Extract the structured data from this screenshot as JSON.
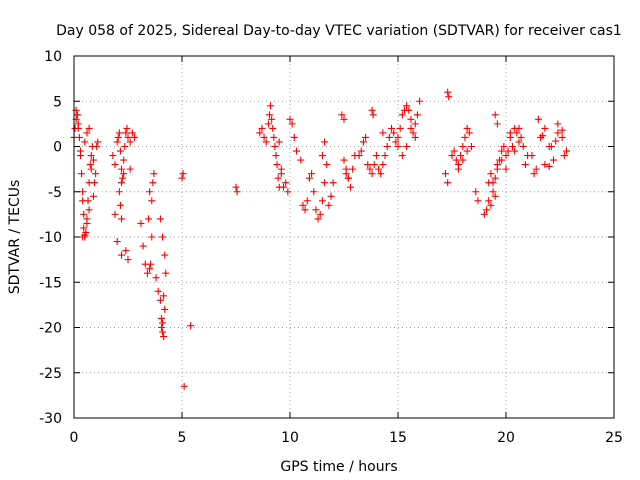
{
  "chart_data": {
    "type": "scatter",
    "title": "Day 058 of 2025, Sidereal Day-to-day VTEC variation (SDTVAR) for receiver cas1",
    "xlabel": "GPS time / hours",
    "ylabel": "SDTVAR / TECUs",
    "xlim": [
      0,
      25
    ],
    "ylim": [
      -30,
      10
    ],
    "xticks": [
      0,
      5,
      10,
      15,
      20,
      25
    ],
    "yticks": [
      10,
      5,
      0,
      -5,
      -10,
      -15,
      -20,
      -25,
      -30
    ],
    "grid": true,
    "marker": "+",
    "color": "#ff0000",
    "series": [
      {
        "name": "SDTVAR",
        "x": [
          0.0,
          0.05,
          0.1,
          0.15,
          0.2,
          0.25,
          0.3,
          0.35,
          0.4,
          0.45,
          0.5,
          0.55,
          0.6,
          0.65,
          0.7,
          0.75,
          0.8,
          0.85,
          0.9,
          0.95,
          1.0,
          1.05,
          1.1,
          0.1,
          0.15,
          0.2,
          0.3,
          0.4,
          0.45,
          0.5,
          0.6,
          0.7,
          0.8,
          0.9,
          0.4,
          0.5,
          0.6,
          0.7,
          1.8,
          1.9,
          2.0,
          2.05,
          2.1,
          2.15,
          2.2,
          2.25,
          2.3,
          2.35,
          2.4,
          2.45,
          2.5,
          2.6,
          2.7,
          2.8,
          1.9,
          2.0,
          2.2,
          2.4,
          2.5,
          2.2,
          2.3,
          2.1,
          2.15,
          2.2,
          2.6,
          3.1,
          3.2,
          3.3,
          3.4,
          3.45,
          3.5,
          3.55,
          3.6,
          3.65,
          3.7,
          3.5,
          3.6,
          3.8,
          3.9,
          4.0,
          4.05,
          4.1,
          4.15,
          4.2,
          4.25,
          4.0,
          4.1,
          4.2,
          4.15,
          4.1,
          4.05,
          5.0,
          5.1,
          5.4,
          5.05,
          7.5,
          7.55,
          8.6,
          8.7,
          8.8,
          8.9,
          9.0,
          9.05,
          9.1,
          9.15,
          9.2,
          9.25,
          9.3,
          9.35,
          9.4,
          9.45,
          9.5,
          9.6,
          9.7,
          9.8,
          9.9,
          10.0,
          10.1,
          10.2,
          10.3,
          9.5,
          9.6,
          10.5,
          10.6,
          10.7,
          10.8,
          10.9,
          11.0,
          11.1,
          11.2,
          11.3,
          11.4,
          11.5,
          11.6,
          11.7,
          11.8,
          11.9,
          12.0,
          11.5,
          11.6,
          12.4,
          12.5,
          12.6,
          12.7,
          12.8,
          12.9,
          13.0,
          12.5,
          12.6,
          12.7,
          13.2,
          13.3,
          13.4,
          13.5,
          13.6,
          13.7,
          13.8,
          13.9,
          14.0,
          14.1,
          14.2,
          14.3,
          14.4,
          14.5,
          14.6,
          14.7,
          14.8,
          14.9,
          15.0,
          13.8,
          13.85,
          14.3,
          15.0,
          15.1,
          15.2,
          15.3,
          15.4,
          15.5,
          15.6,
          15.7,
          15.8,
          15.9,
          16.0,
          15.2,
          15.4,
          15.6,
          15.8,
          17.3,
          17.35,
          17.2,
          17.3,
          17.5,
          17.6,
          17.7,
          17.8,
          17.9,
          18.0,
          18.1,
          18.2,
          18.3,
          18.4,
          17.8,
          18.0,
          18.2,
          18.6,
          18.7,
          19.0,
          19.1,
          19.2,
          19.3,
          19.4,
          19.5,
          19.6,
          19.7,
          19.8,
          19.9,
          20.0,
          20.1,
          20.2,
          20.3,
          20.4,
          20.5,
          20.6,
          20.7,
          20.8,
          20.9,
          21.0,
          19.2,
          19.4,
          19.6,
          19.8,
          20.0,
          20.2,
          20.4,
          20.6,
          19.3,
          19.5,
          19.5,
          19.6,
          21.2,
          21.4,
          21.6,
          21.8,
          22.0,
          22.2,
          22.4,
          22.6,
          22.8,
          21.5,
          21.8,
          22.1,
          22.4,
          22.7,
          21.3,
          21.7,
          22.0,
          22.3,
          22.6
        ],
        "y": [
          1.0,
          2.0,
          3.0,
          3.5,
          2.5,
          1.0,
          -1.0,
          -3.0,
          -6.0,
          -9.0,
          -10.0,
          -9.5,
          -8.0,
          -6.0,
          -4.0,
          -2.0,
          -1.0,
          0.0,
          -1.5,
          -4.0,
          -3.0,
          0.0,
          0.5,
          4.0,
          3.5,
          2.0,
          -0.5,
          -5.0,
          -7.5,
          0.5,
          1.5,
          2.0,
          -2.5,
          -5.5,
          -10.0,
          -9.8,
          -8.5,
          -7.0,
          -1.0,
          -2.0,
          0.5,
          1.0,
          1.5,
          -0.5,
          -2.5,
          -3.5,
          -1.5,
          0.0,
          1.5,
          2.0,
          1.0,
          0.5,
          1.5,
          1.0,
          -7.5,
          -10.5,
          -12.0,
          -11.5,
          -12.5,
          -8.0,
          -3.0,
          -5.0,
          -6.5,
          -4.0,
          -2.5,
          -8.5,
          -11.0,
          -13.0,
          -14.0,
          -8.0,
          -13.5,
          -13.0,
          -6.0,
          -4.0,
          -3.0,
          -5.0,
          -10.0,
          -14.5,
          -16.0,
          -17.0,
          -19.0,
          -20.5,
          -21.0,
          -18.0,
          -14.0,
          -8.0,
          -10.0,
          -12.0,
          -16.5,
          -19.5,
          -20.0,
          -3.5,
          -26.5,
          -19.8,
          -3.0,
          -4.5,
          -5.0,
          1.5,
          2.0,
          1.0,
          0.5,
          2.5,
          3.5,
          4.5,
          3.0,
          2.0,
          1.0,
          0.0,
          -1.0,
          -2.0,
          -3.5,
          -4.5,
          -3.0,
          -4.5,
          -4.0,
          -5.0,
          3.0,
          2.5,
          1.0,
          -0.5,
          0.5,
          -2.5,
          -1.5,
          -6.5,
          -7.0,
          -6.0,
          -3.5,
          -3.0,
          -5.0,
          -7.0,
          -8.0,
          -7.5,
          -6.0,
          -4.0,
          -2.0,
          -6.5,
          -5.5,
          -4.0,
          -1.0,
          0.5,
          3.5,
          3.0,
          -3.0,
          -3.5,
          -4.5,
          -2.5,
          -1.0,
          -1.5,
          -2.5,
          -3.5,
          -1.0,
          -0.5,
          0.5,
          1.0,
          -2.0,
          -2.5,
          -3.0,
          -2.0,
          -1.0,
          -2.5,
          -3.0,
          -2.0,
          -1.0,
          0.0,
          1.0,
          2.0,
          1.5,
          0.5,
          0.0,
          4.0,
          3.5,
          1.5,
          1.0,
          2.0,
          3.5,
          4.0,
          4.5,
          4.0,
          3.0,
          1.5,
          2.5,
          3.5,
          5.0,
          -1.0,
          0.0,
          2.0,
          1.0,
          6.0,
          5.5,
          -3.0,
          -4.0,
          -1.0,
          -0.5,
          -1.5,
          -2.0,
          -1.0,
          0.0,
          1.0,
          2.0,
          1.5,
          0.0,
          -2.5,
          -1.5,
          -0.5,
          -5.0,
          -6.0,
          -7.5,
          -7.0,
          -6.0,
          -3.0,
          -4.0,
          -3.5,
          -2.0,
          -1.5,
          -0.5,
          0.0,
          -1.0,
          -0.5,
          1.0,
          0.0,
          -0.5,
          1.5,
          2.0,
          1.0,
          0.0,
          -2.0,
          -1.0,
          -4.0,
          -5.0,
          -2.5,
          -1.5,
          -2.5,
          1.5,
          2.0,
          0.5,
          -6.5,
          -5.5,
          3.5,
          2.5,
          -1.0,
          -2.5,
          1.0,
          2.0,
          0.0,
          -1.5,
          2.5,
          1.0,
          -0.5,
          3.0,
          -2.0,
          0.0,
          1.5,
          -1.0,
          -3.0,
          1.2,
          -2.2,
          0.6,
          1.8
        ]
      }
    ]
  }
}
